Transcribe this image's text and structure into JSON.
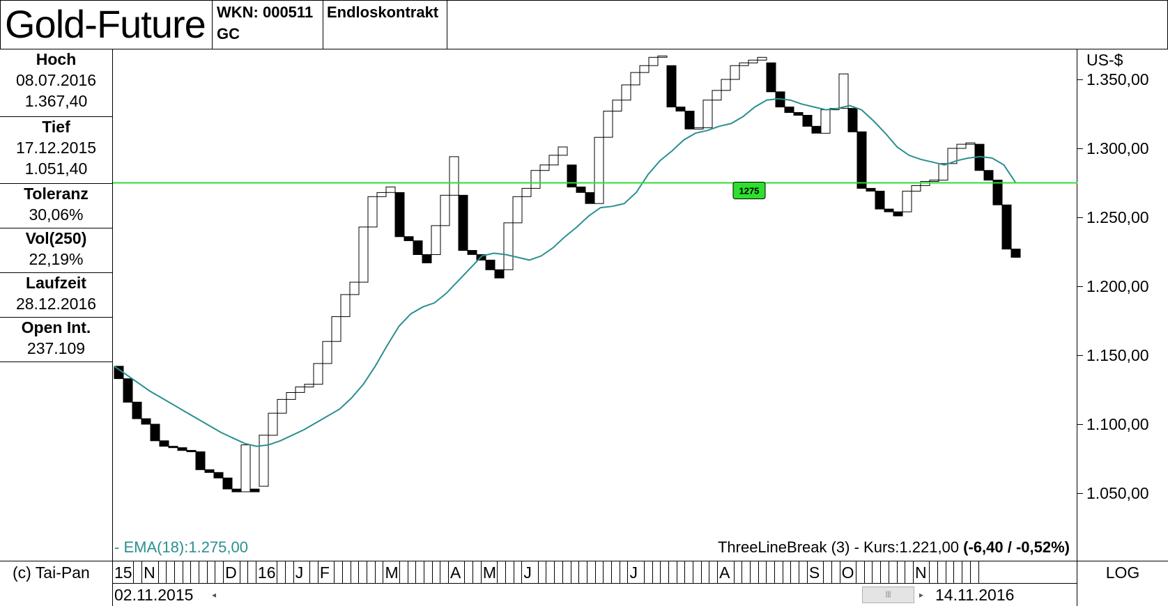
{
  "header": {
    "title": "Gold-Future",
    "wkn": "WKN: 000511",
    "code": "GC",
    "contract": "Endloskontrakt"
  },
  "stats": [
    {
      "label": "Hoch",
      "lines": [
        "08.07.2016",
        "1.367,40"
      ]
    },
    {
      "label": "Tief",
      "lines": [
        "17.12.2015",
        "1.051,40"
      ]
    },
    {
      "label": "Toleranz",
      "lines": [
        "30,06%"
      ]
    },
    {
      "label": "Vol(250)",
      "lines": [
        "22,19%"
      ]
    },
    {
      "label": "Laufzeit",
      "lines": [
        "28.12.2016"
      ]
    },
    {
      "label": "Open Int.",
      "lines": [
        "237.109"
      ]
    }
  ],
  "yaxis": {
    "unit": "US-$",
    "ticks": [
      {
        "value": 1350,
        "label": "1.350,00"
      },
      {
        "value": 1300,
        "label": "1.300,00"
      },
      {
        "value": 1250,
        "label": "1.250,00"
      },
      {
        "value": 1200,
        "label": "1.200,00"
      },
      {
        "value": 1150,
        "label": "1.150,00"
      },
      {
        "value": 1100,
        "label": "1.100,00"
      },
      {
        "value": 1050,
        "label": "1.050,00"
      }
    ]
  },
  "legend": {
    "ema": "- EMA(18):1.275,00",
    "info_prefix": "ThreeLineBreak (3) - Kurs:1.221,00",
    "info_change": "(-6,40 / -0,52%)"
  },
  "hline": {
    "value": 1275,
    "label": "1275",
    "color": "#2de02d"
  },
  "months": [
    {
      "label": "15",
      "cells": 1
    },
    {
      "label": "N",
      "cells": 8
    },
    {
      "label": "D",
      "cells": 2
    },
    {
      "label": "16",
      "cells": 2
    },
    {
      "label": "J",
      "cells": 1
    },
    {
      "label": "F",
      "cells": 6
    },
    {
      "label": "M",
      "cells": 6
    },
    {
      "label": "A",
      "cells": 2
    },
    {
      "label": "M",
      "cells": 3
    },
    {
      "label": "J",
      "cells": 11
    },
    {
      "label": "J",
      "cells": 9
    },
    {
      "label": "A",
      "cells": 9
    },
    {
      "label": "S",
      "cells": 2
    },
    {
      "label": "O",
      "cells": 7
    },
    {
      "label": "N",
      "cells": 6
    }
  ],
  "footer": {
    "copyright": "(c) Tai-Pan",
    "start_date": "02.11.2015",
    "end_date": "14.11.2016",
    "scale": "LOG"
  },
  "chart_data": {
    "type": "bar",
    "subtype": "three-line-break",
    "y_range": [
      1025,
      1375
    ],
    "grid": false,
    "colors": {
      "up": "#ffffff",
      "down": "#000000",
      "ema": "#2a8f8f"
    },
    "bricks": [
      {
        "open": 1142,
        "close": 1133,
        "dir": "down"
      },
      {
        "open": 1133,
        "close": 1116,
        "dir": "down"
      },
      {
        "open": 1116,
        "close": 1104,
        "dir": "down"
      },
      {
        "open": 1104,
        "close": 1100,
        "dir": "down"
      },
      {
        "open": 1100,
        "close": 1088,
        "dir": "down"
      },
      {
        "open": 1088,
        "close": 1084,
        "dir": "down"
      },
      {
        "open": 1084,
        "close": 1083,
        "dir": "down"
      },
      {
        "open": 1083,
        "close": 1081,
        "dir": "down"
      },
      {
        "open": 1081,
        "close": 1080,
        "dir": "down"
      },
      {
        "open": 1080,
        "close": 1067,
        "dir": "down"
      },
      {
        "open": 1067,
        "close": 1065,
        "dir": "down"
      },
      {
        "open": 1065,
        "close": 1061,
        "dir": "down"
      },
      {
        "open": 1061,
        "close": 1053,
        "dir": "down"
      },
      {
        "open": 1053,
        "close": 1051,
        "dir": "down"
      },
      {
        "open": 1051,
        "close": 1085,
        "dir": "up"
      },
      {
        "open": 1053,
        "close": 1051,
        "dir": "down"
      },
      {
        "open": 1055,
        "close": 1092,
        "dir": "up"
      },
      {
        "open": 1092,
        "close": 1108,
        "dir": "up"
      },
      {
        "open": 1108,
        "close": 1118,
        "dir": "up"
      },
      {
        "open": 1118,
        "close": 1123,
        "dir": "up"
      },
      {
        "open": 1123,
        "close": 1127,
        "dir": "up"
      },
      {
        "open": 1127,
        "close": 1129,
        "dir": "up"
      },
      {
        "open": 1129,
        "close": 1144,
        "dir": "up"
      },
      {
        "open": 1144,
        "close": 1160,
        "dir": "up"
      },
      {
        "open": 1160,
        "close": 1178,
        "dir": "up"
      },
      {
        "open": 1178,
        "close": 1194,
        "dir": "up"
      },
      {
        "open": 1194,
        "close": 1203,
        "dir": "up"
      },
      {
        "open": 1203,
        "close": 1243,
        "dir": "up"
      },
      {
        "open": 1243,
        "close": 1265,
        "dir": "up"
      },
      {
        "open": 1265,
        "close": 1268,
        "dir": "up"
      },
      {
        "open": 1268,
        "close": 1272,
        "dir": "up"
      },
      {
        "open": 1268,
        "close": 1236,
        "dir": "down"
      },
      {
        "open": 1236,
        "close": 1233,
        "dir": "down"
      },
      {
        "open": 1233,
        "close": 1223,
        "dir": "down"
      },
      {
        "open": 1223,
        "close": 1217,
        "dir": "down"
      },
      {
        "open": 1223,
        "close": 1244,
        "dir": "up"
      },
      {
        "open": 1244,
        "close": 1266,
        "dir": "up"
      },
      {
        "open": 1266,
        "close": 1294,
        "dir": "up"
      },
      {
        "open": 1266,
        "close": 1226,
        "dir": "down"
      },
      {
        "open": 1226,
        "close": 1223,
        "dir": "down"
      },
      {
        "open": 1223,
        "close": 1219,
        "dir": "down"
      },
      {
        "open": 1219,
        "close": 1212,
        "dir": "down"
      },
      {
        "open": 1212,
        "close": 1206,
        "dir": "down"
      },
      {
        "open": 1212,
        "close": 1246,
        "dir": "up"
      },
      {
        "open": 1246,
        "close": 1265,
        "dir": "up"
      },
      {
        "open": 1265,
        "close": 1271,
        "dir": "up"
      },
      {
        "open": 1271,
        "close": 1284,
        "dir": "up"
      },
      {
        "open": 1284,
        "close": 1288,
        "dir": "up"
      },
      {
        "open": 1288,
        "close": 1295,
        "dir": "up"
      },
      {
        "open": 1295,
        "close": 1301,
        "dir": "up"
      },
      {
        "open": 1288,
        "close": 1272,
        "dir": "down"
      },
      {
        "open": 1272,
        "close": 1268,
        "dir": "down"
      },
      {
        "open": 1268,
        "close": 1260,
        "dir": "down"
      },
      {
        "open": 1260,
        "close": 1308,
        "dir": "up"
      },
      {
        "open": 1308,
        "close": 1327,
        "dir": "up"
      },
      {
        "open": 1327,
        "close": 1335,
        "dir": "up"
      },
      {
        "open": 1335,
        "close": 1346,
        "dir": "up"
      },
      {
        "open": 1346,
        "close": 1355,
        "dir": "up"
      },
      {
        "open": 1355,
        "close": 1360,
        "dir": "up"
      },
      {
        "open": 1360,
        "close": 1366,
        "dir": "up"
      },
      {
        "open": 1366,
        "close": 1367,
        "dir": "up"
      },
      {
        "open": 1360,
        "close": 1330,
        "dir": "down"
      },
      {
        "open": 1330,
        "close": 1327,
        "dir": "down"
      },
      {
        "open": 1327,
        "close": 1314,
        "dir": "down"
      },
      {
        "open": 1314,
        "close": 1315,
        "dir": "up"
      },
      {
        "open": 1315,
        "close": 1335,
        "dir": "up"
      },
      {
        "open": 1335,
        "close": 1342,
        "dir": "up"
      },
      {
        "open": 1342,
        "close": 1350,
        "dir": "up"
      },
      {
        "open": 1350,
        "close": 1360,
        "dir": "up"
      },
      {
        "open": 1360,
        "close": 1362,
        "dir": "up"
      },
      {
        "open": 1362,
        "close": 1364,
        "dir": "up"
      },
      {
        "open": 1364,
        "close": 1366,
        "dir": "up"
      },
      {
        "open": 1362,
        "close": 1341,
        "dir": "down"
      },
      {
        "open": 1341,
        "close": 1330,
        "dir": "down"
      },
      {
        "open": 1330,
        "close": 1326,
        "dir": "down"
      },
      {
        "open": 1326,
        "close": 1324,
        "dir": "down"
      },
      {
        "open": 1324,
        "close": 1316,
        "dir": "down"
      },
      {
        "open": 1316,
        "close": 1311,
        "dir": "down"
      },
      {
        "open": 1311,
        "close": 1328,
        "dir": "up"
      },
      {
        "open": 1328,
        "close": 1329,
        "dir": "up"
      },
      {
        "open": 1329,
        "close": 1354,
        "dir": "up"
      },
      {
        "open": 1329,
        "close": 1312,
        "dir": "down"
      },
      {
        "open": 1312,
        "close": 1271,
        "dir": "down"
      },
      {
        "open": 1271,
        "close": 1269,
        "dir": "down"
      },
      {
        "open": 1269,
        "close": 1256,
        "dir": "down"
      },
      {
        "open": 1256,
        "close": 1254,
        "dir": "down"
      },
      {
        "open": 1254,
        "close": 1251,
        "dir": "down"
      },
      {
        "open": 1254,
        "close": 1269,
        "dir": "up"
      },
      {
        "open": 1269,
        "close": 1273,
        "dir": "up"
      },
      {
        "open": 1273,
        "close": 1276,
        "dir": "up"
      },
      {
        "open": 1276,
        "close": 1277,
        "dir": "up"
      },
      {
        "open": 1277,
        "close": 1289,
        "dir": "up"
      },
      {
        "open": 1289,
        "close": 1300,
        "dir": "up"
      },
      {
        "open": 1300,
        "close": 1303,
        "dir": "up"
      },
      {
        "open": 1303,
        "close": 1304,
        "dir": "up"
      },
      {
        "open": 1303,
        "close": 1284,
        "dir": "down"
      },
      {
        "open": 1284,
        "close": 1277,
        "dir": "down"
      },
      {
        "open": 1277,
        "close": 1259,
        "dir": "down"
      },
      {
        "open": 1259,
        "close": 1227,
        "dir": "down"
      },
      {
        "open": 1227,
        "close": 1221,
        "dir": "down"
      }
    ],
    "ema": [
      1142,
      1136,
      1130,
      1124,
      1119,
      1114,
      1109,
      1104,
      1099,
      1094,
      1090,
      1086,
      1084,
      1085,
      1088,
      1092,
      1096,
      1101,
      1106,
      1111,
      1119,
      1129,
      1142,
      1157,
      1171,
      1180,
      1185,
      1188,
      1195,
      1204,
      1213,
      1222,
      1224,
      1223,
      1221,
      1219,
      1222,
      1228,
      1236,
      1243,
      1251,
      1257,
      1258,
      1260,
      1268,
      1281,
      1291,
      1298,
      1306,
      1311,
      1313,
      1316,
      1318,
      1323,
      1330,
      1335,
      1336,
      1335,
      1332,
      1330,
      1328,
      1329,
      1331,
      1328,
      1320,
      1311,
      1301,
      1295,
      1292,
      1290,
      1288,
      1291,
      1293,
      1294,
      1293,
      1288,
      1275
    ]
  }
}
